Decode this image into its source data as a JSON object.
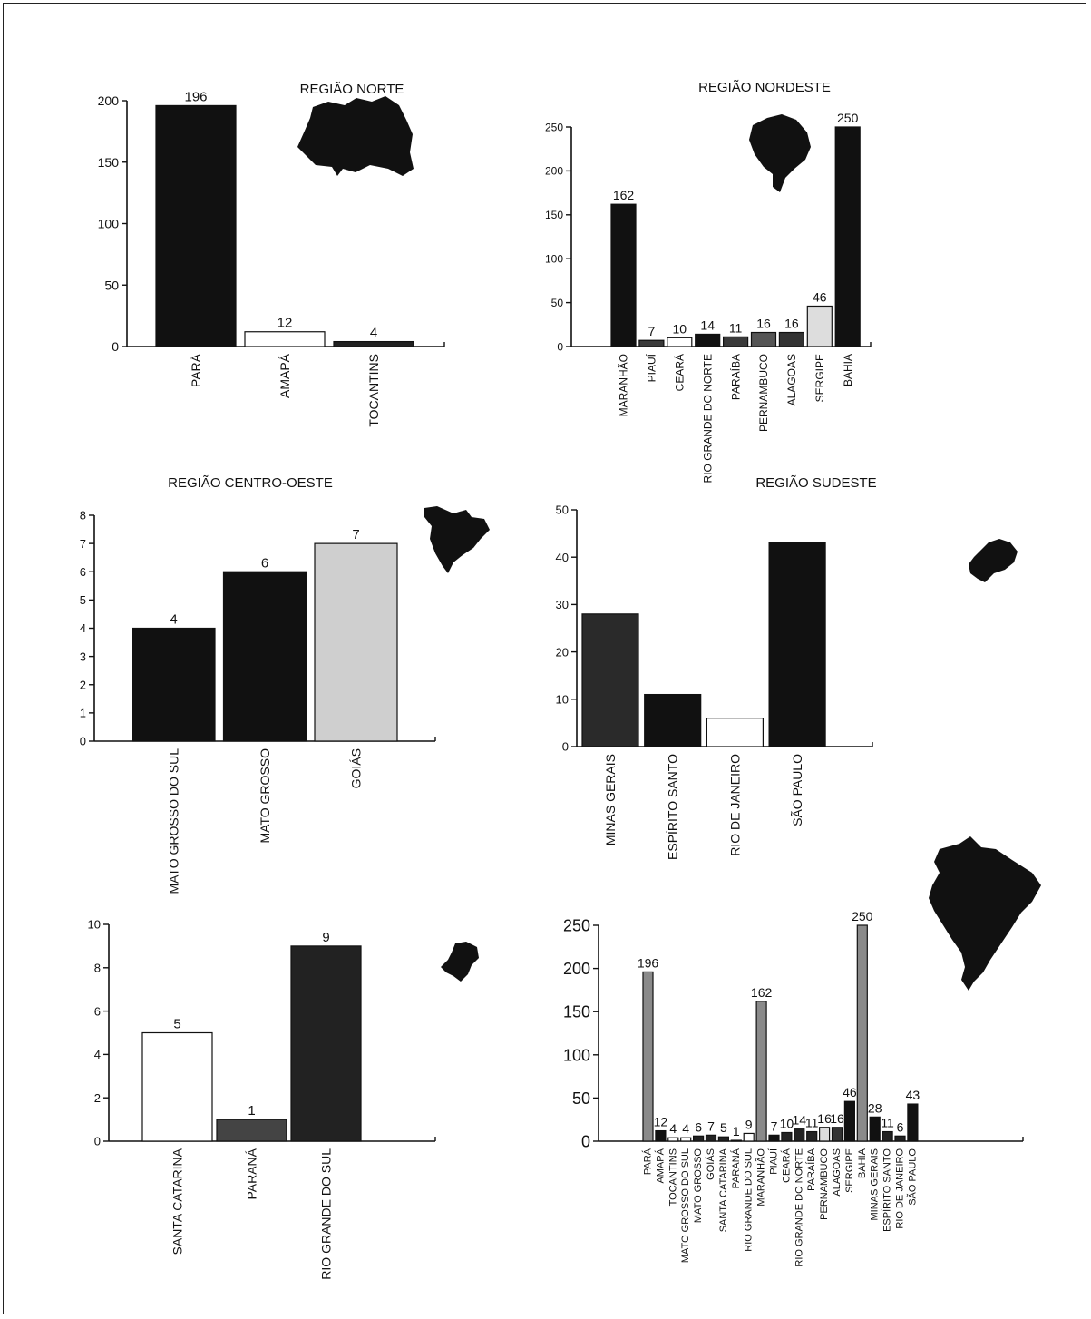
{
  "colors": {
    "black": "#111111",
    "dark_gray": "#3a3a3a",
    "mid_gray": "#6e6e6e",
    "light_gray": "#bdbdbd",
    "white": "#ffffff",
    "axis": "#111111"
  },
  "icons": [
    "map-norte-icon",
    "map-nordeste-icon",
    "map-centro-oeste-icon",
    "map-sudeste-icon",
    "map-sul-icon",
    "map-brasil-icon"
  ],
  "chart_data": [
    {
      "id": "norte",
      "type": "bar",
      "title": "REGIÃO NORTE",
      "categories": [
        "PARÁ",
        "AMAPÁ",
        "TOCANTINS"
      ],
      "values": [
        196,
        12,
        4
      ],
      "data_labels": [
        "196",
        "12",
        "4"
      ],
      "fills": [
        "#111111",
        "#ffffff",
        "#222222"
      ],
      "ylim": [
        0,
        200
      ],
      "yticks": [
        "0",
        "50",
        "100",
        "150",
        "200"
      ],
      "legend": "none"
    },
    {
      "id": "nordeste",
      "type": "bar",
      "title": "REGIÃO NORDESTE",
      "categories": [
        "MARANHÃO",
        "PIAUÍ",
        "CEARÁ",
        "RIO GRANDE DO NORTE",
        "PARAÍBA",
        "PERNAMBUCO",
        "ALAGOAS",
        "SERGIPE",
        "BAHIA"
      ],
      "values": [
        162,
        7,
        10,
        14,
        11,
        16,
        16,
        46,
        250
      ],
      "data_labels": [
        "162",
        "7",
        "10",
        "14",
        "11",
        "16",
        "16",
        "46",
        "250"
      ],
      "fills": [
        "#111111",
        "#3a3a3a",
        "#ffffff",
        "#111111",
        "#3a3a3a",
        "#555555",
        "#333333",
        "#dddddd",
        "#111111"
      ],
      "ylim": [
        0,
        250
      ],
      "yticks": [
        "0",
        "50",
        "100",
        "150",
        "200",
        "250"
      ],
      "legend": "none"
    },
    {
      "id": "centro_oeste",
      "type": "bar",
      "title": "REGIÃO CENTRO-OESTE",
      "categories": [
        "MATO GROSSO DO SUL",
        "MATO GROSSO",
        "GOIÁS"
      ],
      "values": [
        4,
        6,
        7
      ],
      "data_labels": [
        "4",
        "6",
        "7"
      ],
      "fills": [
        "#111111",
        "#111111",
        "#cfcfcf"
      ],
      "ylim": [
        0,
        8
      ],
      "yticks": [
        "0",
        "1",
        "2",
        "3",
        "4",
        "5",
        "6",
        "7",
        "8"
      ],
      "legend": "none"
    },
    {
      "id": "sudeste",
      "type": "bar",
      "title": "REGIÃO SUDESTE",
      "categories": [
        "MINAS GERAIS",
        "ESPÍRITO SANTO",
        "RIO DE JANEIRO",
        "SÃO PAULO"
      ],
      "values": [
        28,
        11,
        6,
        43
      ],
      "data_labels": [],
      "fills": [
        "#2a2a2a",
        "#111111",
        "#ffffff",
        "#111111"
      ],
      "ylim": [
        0,
        50
      ],
      "yticks": [
        "0",
        "10",
        "20",
        "30",
        "40",
        "50"
      ],
      "legend": "none"
    },
    {
      "id": "sul",
      "type": "bar",
      "title": "",
      "categories": [
        "SANTA CATARINA",
        "PARANÁ",
        "RIO GRANDE DO SUL"
      ],
      "values": [
        5,
        1,
        9
      ],
      "data_labels": [
        "5",
        "1",
        "9"
      ],
      "fills": [
        "#ffffff",
        "#444444",
        "#222222"
      ],
      "ylim": [
        0,
        10
      ],
      "yticks": [
        "0",
        "2",
        "4",
        "6",
        "8",
        "10"
      ],
      "legend": "none"
    },
    {
      "id": "brasil",
      "type": "bar",
      "title": "",
      "categories": [
        "PARÁ",
        "AMAPÁ",
        "TOCANTINS",
        "MATO GROSSO DO SUL",
        "MATO GROSSO",
        "GOIÁS",
        "SANTA CATARINA",
        "PARANÁ",
        "RIO GRANDE DO SUL",
        "MARANHÃO",
        "PIAUÍ",
        "CEARÁ",
        "RIO GRANDE DO NORTE",
        "PARAÍBA",
        "PERNAMBUCO",
        "ALAGOAS",
        "SERGIPE",
        "BAHIA",
        "MINAS GERAIS",
        "ESPÍRITO SANTO",
        "RIO DE JANEIRO",
        "SÃO PAULO"
      ],
      "values": [
        196,
        12,
        4,
        4,
        6,
        7,
        5,
        1,
        9,
        162,
        7,
        10,
        14,
        11,
        16,
        16,
        46,
        250,
        28,
        11,
        6,
        43
      ],
      "data_labels": [
        "196",
        "12",
        "4",
        "4",
        "6",
        "7",
        "5",
        "1",
        "9",
        "162",
        "7",
        "10",
        "14",
        "11",
        "16",
        "16",
        "46",
        "250",
        "28",
        "11",
        "6",
        "43"
      ],
      "fills": [
        "#8a8a8a",
        "#111111",
        "#ffffff",
        "#ffffff",
        "#222222",
        "#222222",
        "#222222",
        "#444444",
        "#ffffff",
        "#8a8a8a",
        "#111111",
        "#222222",
        "#222222",
        "#222222",
        "#dddddd",
        "#333333",
        "#111111",
        "#8a8a8a",
        "#111111",
        "#222222",
        "#222222",
        "#111111"
      ],
      "ylim": [
        0,
        250
      ],
      "yticks": [
        "0",
        "50",
        "100",
        "150",
        "200",
        "250"
      ],
      "legend": "none"
    }
  ]
}
